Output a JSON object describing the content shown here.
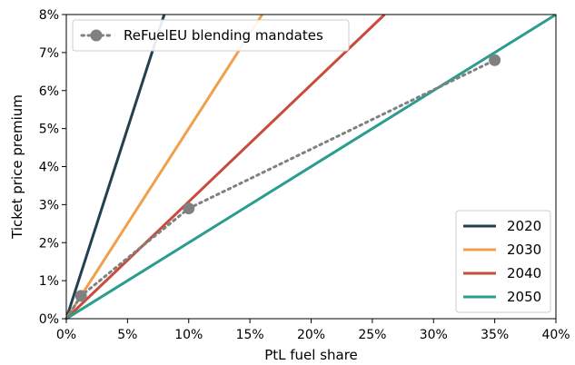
{
  "chart_data": {
    "type": "line",
    "xlabel": "PtL fuel share",
    "ylabel": "Ticket price premium",
    "xlim": [
      0,
      40
    ],
    "ylim": [
      0,
      8
    ],
    "xticks": [
      "0%",
      "5%",
      "10%",
      "15%",
      "20%",
      "25%",
      "30%",
      "35%",
      "40%"
    ],
    "yticks": [
      "0%",
      "1%",
      "2%",
      "3%",
      "4%",
      "5%",
      "6%",
      "7%",
      "8%"
    ],
    "grid": false,
    "legend_position": "bottom-right",
    "series": [
      {
        "name": "2020",
        "color": "#24404f",
        "x": [
          0,
          8
        ],
        "y": [
          0,
          8
        ]
      },
      {
        "name": "2030",
        "color": "#f0a04b",
        "x": [
          0,
          16
        ],
        "y": [
          0,
          8
        ]
      },
      {
        "name": "2040",
        "color": "#c84b3c",
        "x": [
          0,
          26
        ],
        "y": [
          0,
          8
        ]
      },
      {
        "name": "2050",
        "color": "#2a9d8f",
        "x": [
          0,
          40
        ],
        "y": [
          0,
          8
        ]
      }
    ],
    "mandates": {
      "name": "ReFuelEU blending mandates",
      "color": "#808080",
      "position": "top-left",
      "x": [
        0,
        1.2,
        10,
        35
      ],
      "y": [
        0,
        0.6,
        2.9,
        6.8
      ]
    }
  }
}
